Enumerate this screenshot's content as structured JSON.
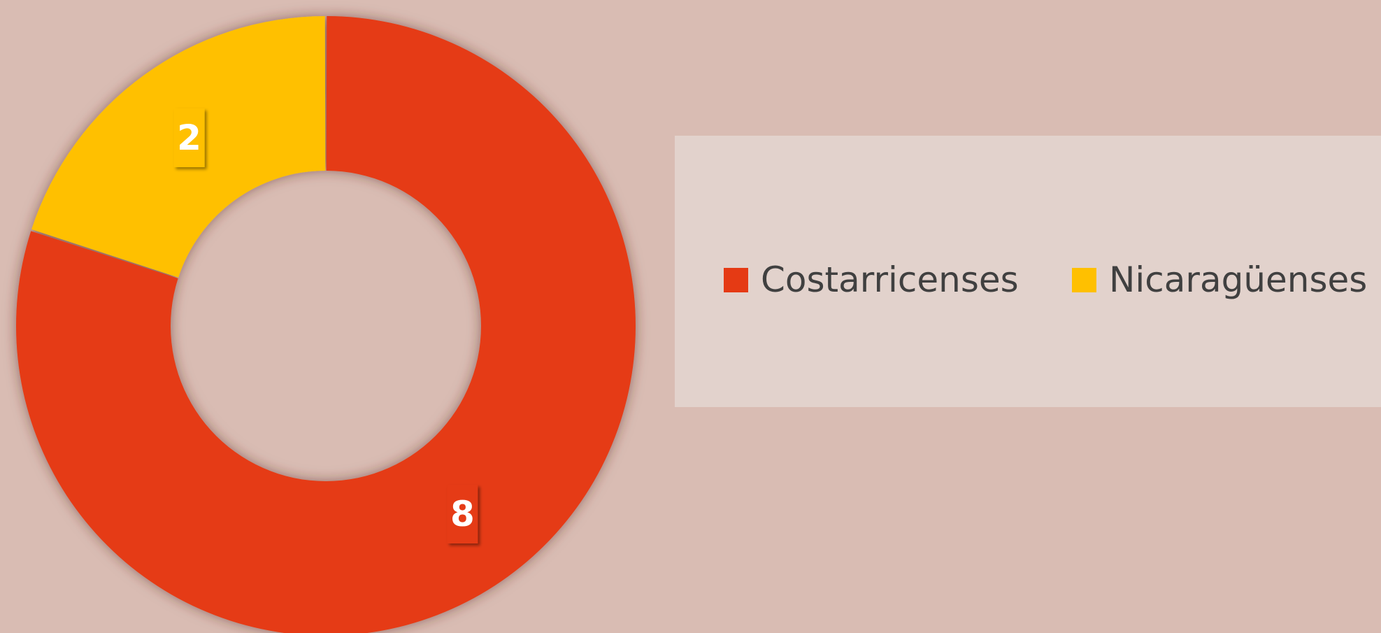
{
  "chart_data": {
    "type": "donut",
    "title": "",
    "categories": [
      "Costarricenses",
      "Nicaragüenses"
    ],
    "values": [
      8,
      2
    ],
    "colors": [
      "#e53a14",
      "#ffc000"
    ],
    "data_labels": [
      "8",
      "2"
    ],
    "legend": {
      "placement": "right",
      "entries": [
        "Costarricenses",
        "Nicaragüenses"
      ]
    },
    "start_angle_deg": 0,
    "direction": "clockwise"
  },
  "colors": {
    "background": "#d9bcb3",
    "legend_background": "#e2d2cc",
    "legend_text": "#404040",
    "label_text": "#ffffff"
  }
}
